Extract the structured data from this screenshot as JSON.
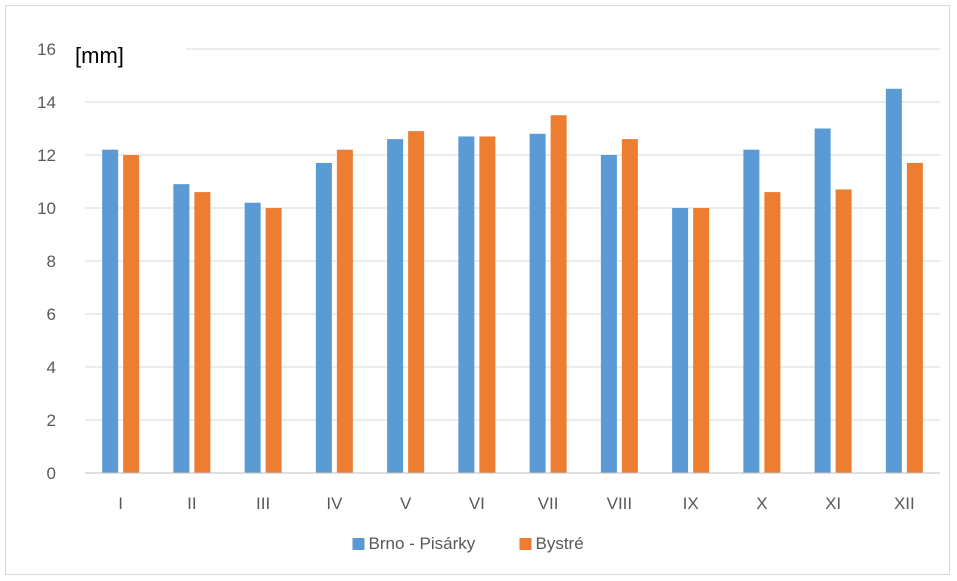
{
  "chart_data": {
    "type": "bar",
    "title": "",
    "unit_label": "[mm]",
    "xlabel": "",
    "ylabel": "",
    "categories": [
      "I",
      "II",
      "III",
      "IV",
      "V",
      "VI",
      "VII",
      "VIII",
      "IX",
      "X",
      "XI",
      "XII"
    ],
    "series": [
      {
        "name": "Brno - Pisárky",
        "color": "#5b9bd5",
        "values": [
          12.2,
          10.9,
          10.2,
          11.7,
          12.6,
          12.7,
          12.8,
          12.0,
          10.0,
          12.2,
          13.0,
          14.5
        ]
      },
      {
        "name": "Bystré",
        "color": "#ed7d31",
        "values": [
          12.0,
          10.6,
          10.0,
          12.2,
          12.9,
          12.7,
          13.5,
          12.6,
          10.0,
          10.6,
          10.7,
          11.7
        ]
      }
    ],
    "ylim": [
      0,
      16
    ],
    "yticks": [
      0,
      2,
      4,
      6,
      8,
      10,
      12,
      14,
      16
    ],
    "grid": true,
    "legend_position": "bottom"
  }
}
